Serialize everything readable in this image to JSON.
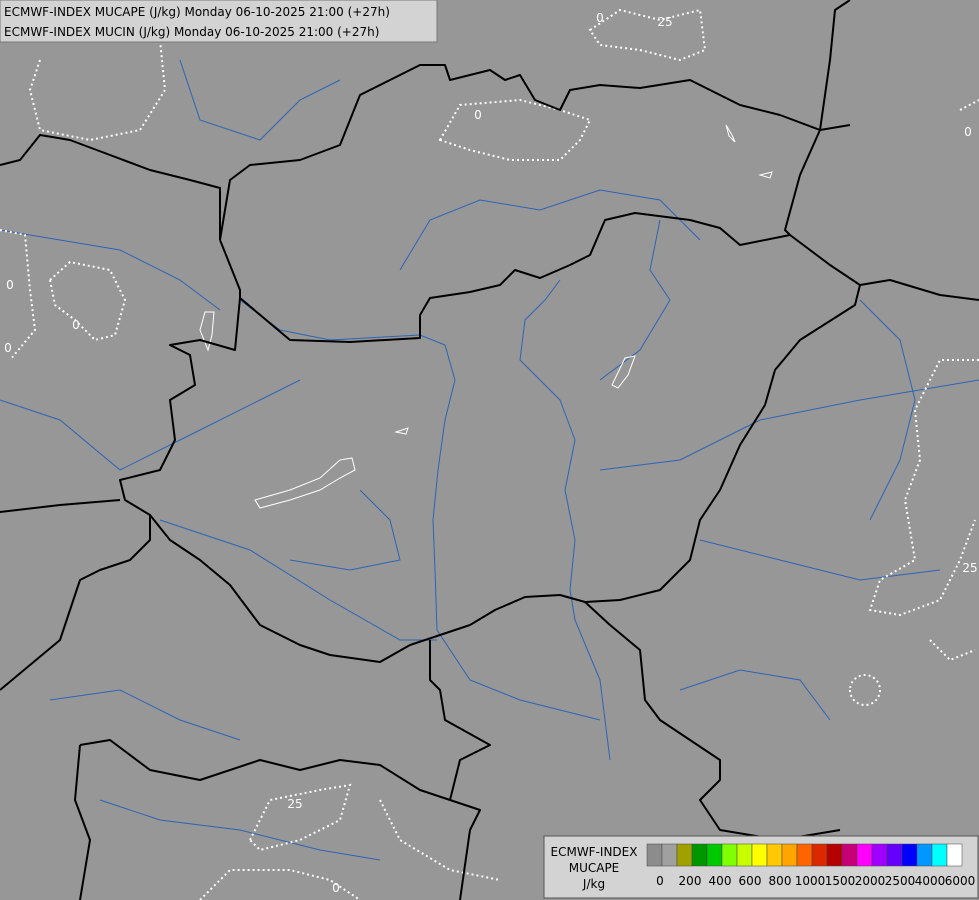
{
  "header": {
    "line1": "ECMWF-INDEX MUCAPE (J/kg) Monday 06-10-2025 21:00 (+27h)",
    "line2": "ECMWF-INDEX MUCIN (J/kg) Monday 06-10-2025 21:00 (+27h)"
  },
  "legend": {
    "title": [
      "ECMWF-INDEX",
      "MUCAPE",
      "J/kg"
    ],
    "colors": [
      "#8c8c8c",
      "#a0a0a0",
      "#a0a000",
      "#009600",
      "#00c800",
      "#7fff00",
      "#c8ff00",
      "#ffff00",
      "#ffc800",
      "#ffa500",
      "#ff6400",
      "#dc2800",
      "#b40000",
      "#c80078",
      "#ff00ff",
      "#a000ff",
      "#6400ff",
      "#0000ff",
      "#0096ff",
      "#00ffff",
      "#ffffff"
    ],
    "labels": [
      "0",
      "200",
      "400",
      "600",
      "800",
      "1000",
      "1500",
      "2000",
      "2500",
      "4000",
      "6000"
    ]
  },
  "contour_labels": [
    "0",
    "25",
    "0",
    "0",
    "0",
    "0",
    "0",
    "25",
    "25",
    "0"
  ]
}
